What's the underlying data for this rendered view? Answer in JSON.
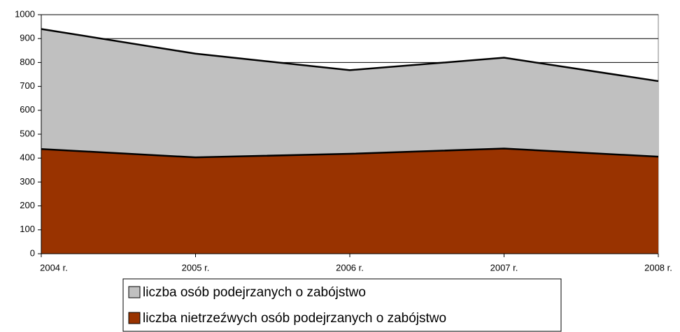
{
  "chart_data": {
    "type": "area",
    "categories": [
      "2004 r.",
      "2005 r.",
      "2006 r.",
      "2007 r.",
      "2008 r."
    ],
    "series": [
      {
        "name": "liczba osób podejrzanych o zabójstwo",
        "color": "#c0c0c0",
        "values": [
          940,
          837,
          768,
          820,
          722
        ]
      },
      {
        "name": "liczba nietrzeźwych osób podejrzanych o zabójstwo",
        "color": "#993300",
        "values": [
          438,
          403,
          418,
          440,
          406
        ]
      }
    ],
    "ylim": [
      0,
      1000
    ],
    "yticks": [
      0,
      100,
      200,
      300,
      400,
      500,
      600,
      700,
      800,
      900,
      1000
    ],
    "grid": true
  }
}
